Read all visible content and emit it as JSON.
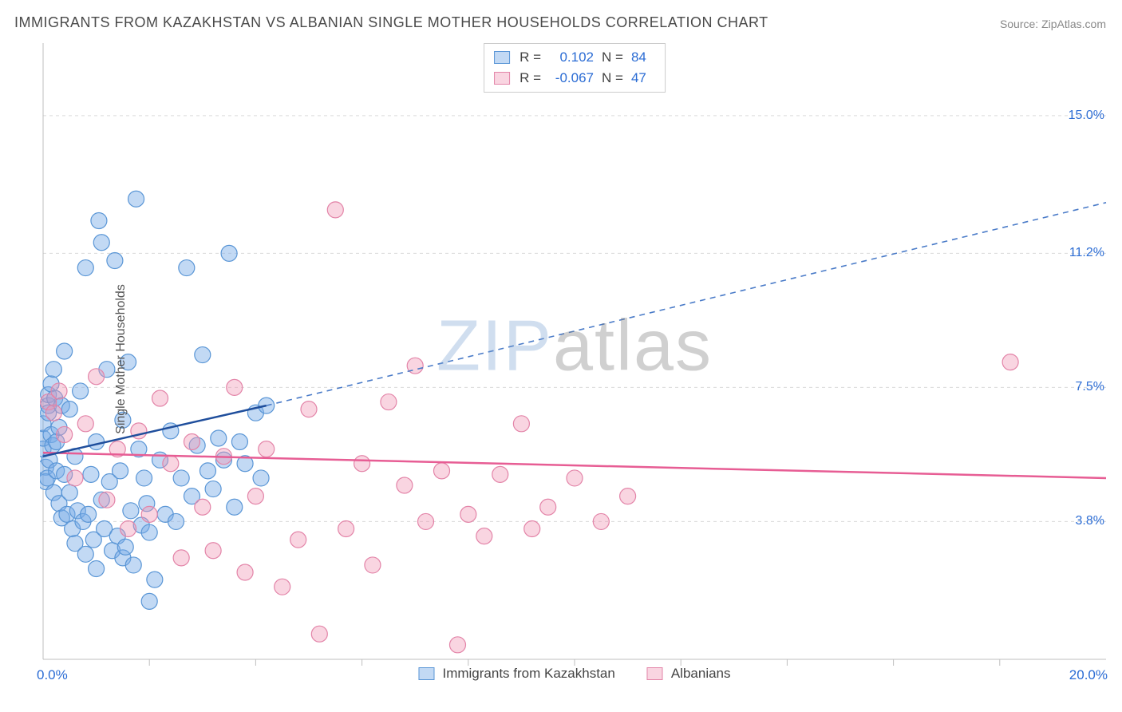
{
  "title": "IMMIGRANTS FROM KAZAKHSTAN VS ALBANIAN SINGLE MOTHER HOUSEHOLDS CORRELATION CHART",
  "source": "Source: ZipAtlas.com",
  "watermark": {
    "zip": "ZIP",
    "atlas": "atlas"
  },
  "chart": {
    "type": "scatter",
    "ylabel": "Single Mother Households",
    "background_color": "#ffffff",
    "grid_color": "#d9d9d9",
    "axis_color": "#bfbfbf",
    "tick_color": "#bfbfbf",
    "xlim": [
      0,
      20
    ],
    "ylim": [
      0,
      17
    ],
    "x_axis": {
      "min_label": "0.0%",
      "max_label": "20.0%",
      "ticks": [
        2,
        4,
        6,
        8,
        10,
        12,
        14,
        16,
        18
      ]
    },
    "y_axis": {
      "ticks": [
        3.8,
        7.5,
        11.2,
        15.0
      ],
      "tick_labels": [
        "3.8%",
        "7.5%",
        "11.2%",
        "15.0%"
      ]
    },
    "series": [
      {
        "id": "kazakhstan",
        "label": "Immigrants from Kazakhstan",
        "color_fill": "rgba(120,170,230,0.45)",
        "color_stroke": "#5a96d6",
        "marker_radius": 10,
        "R": "0.102",
        "N": "84",
        "trend": {
          "line_color": "#1f4e9c",
          "line_width": 2.5,
          "dash_color": "#4a7bc8",
          "solid": {
            "x1": 0,
            "y1": 5.6,
            "x2": 4.2,
            "y2": 7.0
          },
          "dashed": {
            "x1": 4.2,
            "y1": 7.0,
            "x2": 20,
            "y2": 12.6
          }
        },
        "points": [
          [
            0.0,
            5.8
          ],
          [
            0.0,
            6.1
          ],
          [
            0.0,
            6.5
          ],
          [
            0.05,
            5.3
          ],
          [
            0.05,
            4.9
          ],
          [
            0.08,
            5.0
          ],
          [
            0.1,
            7.0
          ],
          [
            0.1,
            7.3
          ],
          [
            0.1,
            6.8
          ],
          [
            0.12,
            5.5
          ],
          [
            0.15,
            6.2
          ],
          [
            0.15,
            7.6
          ],
          [
            0.18,
            5.9
          ],
          [
            0.2,
            4.6
          ],
          [
            0.2,
            8.0
          ],
          [
            0.22,
            7.2
          ],
          [
            0.25,
            6.0
          ],
          [
            0.25,
            5.2
          ],
          [
            0.3,
            6.4
          ],
          [
            0.3,
            4.3
          ],
          [
            0.35,
            7.0
          ],
          [
            0.35,
            3.9
          ],
          [
            0.4,
            8.5
          ],
          [
            0.4,
            5.1
          ],
          [
            0.45,
            4.0
          ],
          [
            0.5,
            4.6
          ],
          [
            0.5,
            6.9
          ],
          [
            0.55,
            3.6
          ],
          [
            0.6,
            5.6
          ],
          [
            0.6,
            3.2
          ],
          [
            0.65,
            4.1
          ],
          [
            0.7,
            7.4
          ],
          [
            0.75,
            3.8
          ],
          [
            0.8,
            10.8
          ],
          [
            0.8,
            2.9
          ],
          [
            0.85,
            4.0
          ],
          [
            0.9,
            5.1
          ],
          [
            0.95,
            3.3
          ],
          [
            1.0,
            6.0
          ],
          [
            1.0,
            2.5
          ],
          [
            1.05,
            12.1
          ],
          [
            1.1,
            4.4
          ],
          [
            1.1,
            11.5
          ],
          [
            1.15,
            3.6
          ],
          [
            1.2,
            8.0
          ],
          [
            1.25,
            4.9
          ],
          [
            1.3,
            3.0
          ],
          [
            1.35,
            11.0
          ],
          [
            1.4,
            3.4
          ],
          [
            1.45,
            5.2
          ],
          [
            1.5,
            2.8
          ],
          [
            1.5,
            6.6
          ],
          [
            1.55,
            3.1
          ],
          [
            1.6,
            8.2
          ],
          [
            1.65,
            4.1
          ],
          [
            1.7,
            2.6
          ],
          [
            1.75,
            12.7
          ],
          [
            1.8,
            5.8
          ],
          [
            1.85,
            3.7
          ],
          [
            1.9,
            5.0
          ],
          [
            1.95,
            4.3
          ],
          [
            2.0,
            3.5
          ],
          [
            2.0,
            1.6
          ],
          [
            2.1,
            2.2
          ],
          [
            2.2,
            5.5
          ],
          [
            2.3,
            4.0
          ],
          [
            2.4,
            6.3
          ],
          [
            2.5,
            3.8
          ],
          [
            2.6,
            5.0
          ],
          [
            2.7,
            10.8
          ],
          [
            2.8,
            4.5
          ],
          [
            2.9,
            5.9
          ],
          [
            3.0,
            8.4
          ],
          [
            3.1,
            5.2
          ],
          [
            3.2,
            4.7
          ],
          [
            3.3,
            6.1
          ],
          [
            3.4,
            5.5
          ],
          [
            3.5,
            11.2
          ],
          [
            3.6,
            4.2
          ],
          [
            3.7,
            6.0
          ],
          [
            3.8,
            5.4
          ],
          [
            4.0,
            6.8
          ],
          [
            4.1,
            5.0
          ],
          [
            4.2,
            7.0
          ]
        ]
      },
      {
        "id": "albanians",
        "label": "Albanians",
        "color_fill": "rgba(240,150,180,0.4)",
        "color_stroke": "#e384a8",
        "marker_radius": 10,
        "R": "-0.067",
        "N": "47",
        "trend": {
          "line_color": "#e75d94",
          "line_width": 2.5,
          "solid": {
            "x1": 0,
            "y1": 5.7,
            "x2": 20,
            "y2": 5.0
          }
        },
        "points": [
          [
            0.1,
            7.1
          ],
          [
            0.2,
            6.8
          ],
          [
            0.3,
            7.4
          ],
          [
            0.4,
            6.2
          ],
          [
            0.6,
            5.0
          ],
          [
            0.8,
            6.5
          ],
          [
            1.0,
            7.8
          ],
          [
            1.2,
            4.4
          ],
          [
            1.4,
            5.8
          ],
          [
            1.6,
            3.6
          ],
          [
            1.8,
            6.3
          ],
          [
            2.0,
            4.0
          ],
          [
            2.2,
            7.2
          ],
          [
            2.4,
            5.4
          ],
          [
            2.6,
            2.8
          ],
          [
            2.8,
            6.0
          ],
          [
            3.0,
            4.2
          ],
          [
            3.2,
            3.0
          ],
          [
            3.4,
            5.6
          ],
          [
            3.6,
            7.5
          ],
          [
            3.8,
            2.4
          ],
          [
            4.0,
            4.5
          ],
          [
            4.2,
            5.8
          ],
          [
            4.5,
            2.0
          ],
          [
            4.8,
            3.3
          ],
          [
            5.0,
            6.9
          ],
          [
            5.2,
            0.7
          ],
          [
            5.5,
            12.4
          ],
          [
            5.7,
            3.6
          ],
          [
            6.0,
            5.4
          ],
          [
            6.2,
            2.6
          ],
          [
            6.5,
            7.1
          ],
          [
            6.8,
            4.8
          ],
          [
            7.0,
            8.1
          ],
          [
            7.2,
            3.8
          ],
          [
            7.5,
            5.2
          ],
          [
            7.8,
            0.4
          ],
          [
            8.0,
            4.0
          ],
          [
            8.3,
            3.4
          ],
          [
            8.6,
            5.1
          ],
          [
            9.0,
            6.5
          ],
          [
            9.2,
            3.6
          ],
          [
            9.5,
            4.2
          ],
          [
            10.0,
            5.0
          ],
          [
            10.5,
            3.8
          ],
          [
            11.0,
            4.5
          ],
          [
            18.2,
            8.2
          ]
        ]
      }
    ]
  },
  "legend_top": {
    "r_label": "R =",
    "n_label": "N ="
  }
}
